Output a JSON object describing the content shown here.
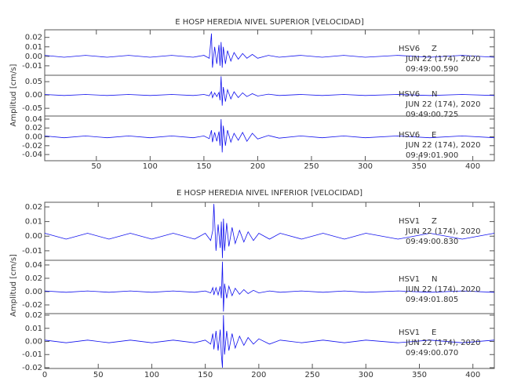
{
  "chart_data": [
    {
      "type": "line",
      "title": "E HOSP HEREDIA NIVEL SUPERIOR [VELOCIDAD]",
      "ylabel": "Amplitud [cm/s]",
      "xlim": [
        2,
        420
      ],
      "xticks": [
        50,
        100,
        150,
        200,
        250,
        300,
        350,
        400
      ],
      "x": [
        2,
        20,
        40,
        60,
        80,
        100,
        120,
        140,
        150,
        155,
        157,
        158,
        160,
        162,
        164,
        165,
        166,
        167,
        168,
        170,
        172,
        175,
        178,
        182,
        186,
        190,
        195,
        200,
        210,
        220,
        240,
        260,
        280,
        300,
        330,
        360,
        390,
        420
      ],
      "series": [
        {
          "station": "HSV6",
          "component": "Z",
          "date": "JUN 22 (174), 2020",
          "time": "09:49:00.590",
          "color": "#1010ee",
          "ylim": [
            -0.02,
            0.028
          ],
          "yticks": [
            {
              "value": -0.01,
              "label": "-0.01"
            },
            {
              "value": 0,
              "label": "0.00"
            },
            {
              "value": 0.01,
              "label": "0.01"
            },
            {
              "value": 0.02,
              "label": "0.02"
            }
          ],
          "values": [
            0.001,
            -0.001,
            0.001,
            -0.001,
            0.001,
            -0.001,
            0.001,
            -0.001,
            0.001,
            -0.002,
            0.024,
            -0.012,
            0.01,
            -0.008,
            0.012,
            -0.01,
            0.015,
            -0.012,
            0.01,
            -0.008,
            0.006,
            -0.005,
            0.004,
            -0.003,
            0.003,
            -0.002,
            0.002,
            -0.002,
            0.001,
            -0.001,
            0.001,
            -0.001,
            0.001,
            -0.001,
            0.001,
            -0.001,
            0.001,
            -0.001
          ]
        },
        {
          "station": "HSV6",
          "component": "N",
          "date": "JUN 22 (174), 2020",
          "time": "09:49:00.725",
          "color": "#1010ee",
          "ylim": [
            -0.079,
            0.074
          ],
          "yticks": [
            {
              "value": -0.05,
              "label": "-0.05"
            },
            {
              "value": 0,
              "label": "0.00"
            },
            {
              "value": 0.05,
              "label": "0.05"
            }
          ],
          "values": [
            0.002,
            -0.002,
            0.002,
            -0.002,
            0.002,
            -0.002,
            0.002,
            -0.002,
            0.002,
            -0.003,
            0.012,
            -0.01,
            0.008,
            -0.006,
            0.01,
            -0.02,
            0.07,
            -0.04,
            0.03,
            -0.025,
            0.02,
            -0.015,
            0.012,
            -0.01,
            0.008,
            -0.006,
            0.005,
            -0.004,
            0.003,
            -0.002,
            0.002,
            -0.002,
            0.002,
            -0.002,
            0.002,
            -0.002,
            0.002,
            -0.002
          ]
        },
        {
          "station": "HSV6",
          "component": "E",
          "date": "JUN 22 (174), 2020",
          "time": "09:49:01.900",
          "color": "#1010ee",
          "ylim": [
            -0.054,
            0.047
          ],
          "yticks": [
            {
              "value": -0.04,
              "label": "-0.04"
            },
            {
              "value": -0.02,
              "label": "-0.02"
            },
            {
              "value": 0,
              "label": "0.00"
            },
            {
              "value": 0.02,
              "label": "0.02"
            },
            {
              "value": 0.04,
              "label": "0.04"
            }
          ],
          "values": [
            0.002,
            -0.002,
            0.002,
            -0.002,
            0.002,
            -0.002,
            0.002,
            -0.002,
            0.002,
            -0.004,
            0.015,
            -0.012,
            0.01,
            -0.01,
            0.012,
            -0.02,
            0.04,
            -0.035,
            0.025,
            -0.02,
            0.015,
            -0.012,
            0.008,
            -0.008,
            0.01,
            -0.01,
            0.008,
            -0.005,
            0.003,
            -0.003,
            0.002,
            -0.002,
            0.002,
            -0.002,
            0.002,
            -0.002,
            0.002,
            -0.002
          ]
        }
      ]
    },
    {
      "type": "line",
      "title": "E HOSP HEREDIA NIVEL INFERIOR [VELOCIDAD]",
      "ylabel": "Amplitud [cm/s]",
      "xlim": [
        0,
        420
      ],
      "xticks": [
        0,
        50,
        100,
        150,
        200,
        250,
        300,
        350,
        400
      ],
      "x": [
        0,
        20,
        40,
        60,
        80,
        100,
        120,
        140,
        150,
        155,
        157,
        158,
        160,
        162,
        164,
        165,
        166,
        167,
        168,
        170,
        172,
        175,
        178,
        182,
        186,
        190,
        195,
        200,
        210,
        220,
        240,
        260,
        280,
        300,
        330,
        360,
        390,
        420
      ],
      "series": [
        {
          "station": "HSV1",
          "component": "Z",
          "date": "JUN 22 (174), 2020",
          "time": "09:49:00.830",
          "color": "#1010ee",
          "ylim": [
            -0.0165,
            0.0232
          ],
          "yticks": [
            {
              "value": -0.01,
              "label": "-0.01"
            },
            {
              "value": 0,
              "label": "0.00"
            },
            {
              "value": 0.01,
              "label": "0.01"
            },
            {
              "value": 0.02,
              "label": "0.02"
            }
          ],
          "values": [
            0.002,
            -0.002,
            0.002,
            -0.002,
            0.002,
            -0.002,
            0.002,
            -0.002,
            0.002,
            -0.003,
            0.004,
            0.022,
            -0.01,
            0.008,
            -0.008,
            0.01,
            -0.015,
            0.012,
            -0.01,
            0.009,
            -0.007,
            0.006,
            -0.005,
            0.004,
            -0.004,
            0.003,
            -0.003,
            0.002,
            -0.002,
            0.002,
            -0.002,
            0.002,
            -0.002,
            0.002,
            -0.002,
            0.002,
            -0.002,
            0.002
          ]
        },
        {
          "station": "HSV1",
          "component": "N",
          "date": "JUN 22 (174), 2020",
          "time": "09:49:01.805",
          "color": "#1010ee",
          "ylim": [
            -0.033,
            0.047
          ],
          "yticks": [
            {
              "value": -0.02,
              "label": "-0.02"
            },
            {
              "value": 0,
              "label": "0.00"
            },
            {
              "value": 0.02,
              "label": "0.02"
            },
            {
              "value": 0.04,
              "label": "0.04"
            }
          ],
          "values": [
            0.001,
            -0.001,
            0.001,
            -0.001,
            0.001,
            -0.001,
            0.001,
            -0.001,
            0.001,
            -0.002,
            0.006,
            -0.005,
            0.006,
            -0.005,
            0.008,
            -0.01,
            0.045,
            -0.03,
            0.012,
            -0.01,
            0.008,
            -0.006,
            0.005,
            -0.004,
            0.003,
            -0.003,
            0.002,
            -0.002,
            0.001,
            -0.001,
            0.001,
            -0.001,
            0.001,
            -0.001,
            0.001,
            -0.001,
            0.001,
            -0.001
          ]
        },
        {
          "station": "HSV1",
          "component": "E",
          "date": "JUN 22 (174), 2020",
          "time": "09:49:00.070",
          "color": "#1010ee",
          "ylim": [
            -0.0206,
            0.0212
          ],
          "yticks": [
            {
              "value": -0.02,
              "label": "-0.02"
            },
            {
              "value": -0.01,
              "label": "-0.01"
            },
            {
              "value": 0,
              "label": "0.00"
            },
            {
              "value": 0.01,
              "label": "0.01"
            },
            {
              "value": 0.02,
              "label": "0.02"
            }
          ],
          "values": [
            0.001,
            -0.001,
            0.001,
            -0.001,
            0.001,
            -0.001,
            0.001,
            -0.001,
            0.001,
            -0.002,
            0.006,
            -0.006,
            0.008,
            -0.007,
            0.009,
            -0.01,
            -0.02,
            0.02,
            -0.01,
            0.008,
            -0.007,
            0.006,
            -0.005,
            0.004,
            -0.003,
            0.003,
            -0.002,
            0.002,
            -0.002,
            0.001,
            -0.001,
            0.001,
            -0.001,
            0.001,
            -0.001,
            0.001,
            -0.001,
            0.001
          ]
        }
      ]
    }
  ]
}
